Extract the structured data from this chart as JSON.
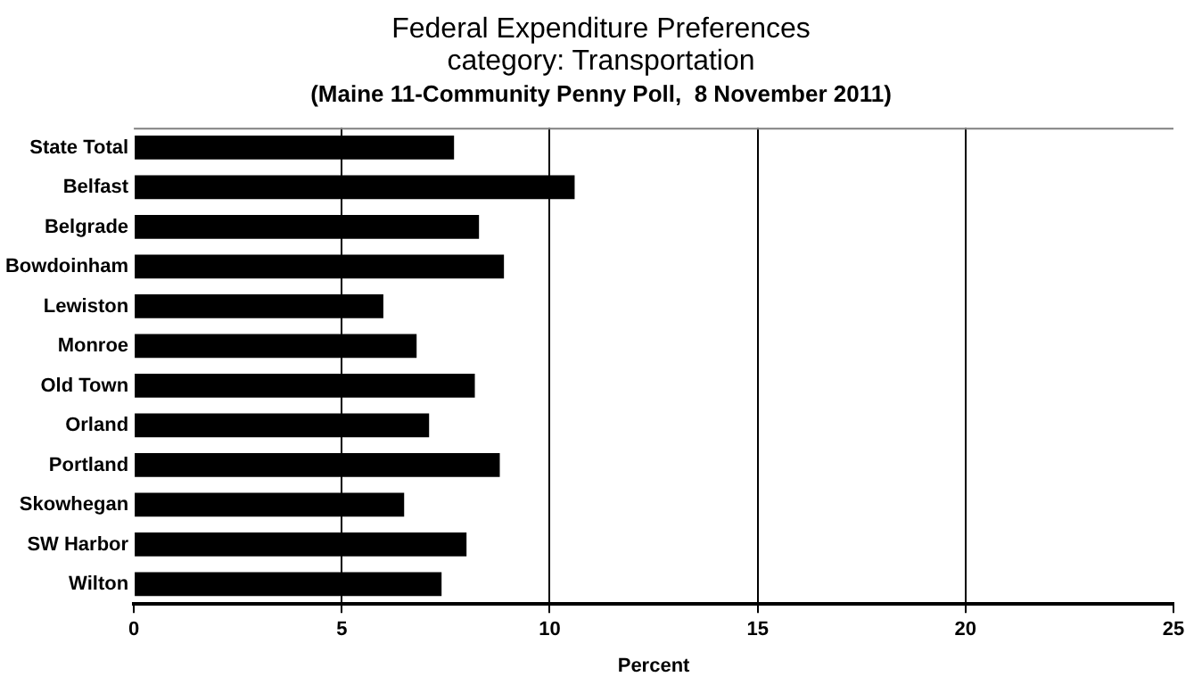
{
  "chart_data": {
    "type": "bar",
    "orientation": "horizontal",
    "title": "Federal Expenditure Preferences",
    "subtitle": "category:   Transportation",
    "annotations": [
      "(Maine 11-Community Penny Poll,  8 November 2011)"
    ],
    "categories": [
      "State Total",
      "Belfast",
      "Belgrade",
      "Bowdoinham",
      "Lewiston",
      "Monroe",
      "Old Town",
      "Orland",
      "Portland",
      "Skowhegan",
      "SW Harbor",
      "Wilton"
    ],
    "values": [
      7.7,
      10.6,
      8.3,
      8.9,
      6.0,
      6.8,
      8.2,
      7.1,
      8.8,
      6.5,
      8.0,
      7.4
    ],
    "color": "#000000",
    "xlabel": "Percent",
    "xlim": [
      0,
      25
    ],
    "xticks": [
      0,
      5,
      10,
      15,
      20,
      25
    ],
    "grid": "x",
    "legend": false
  }
}
